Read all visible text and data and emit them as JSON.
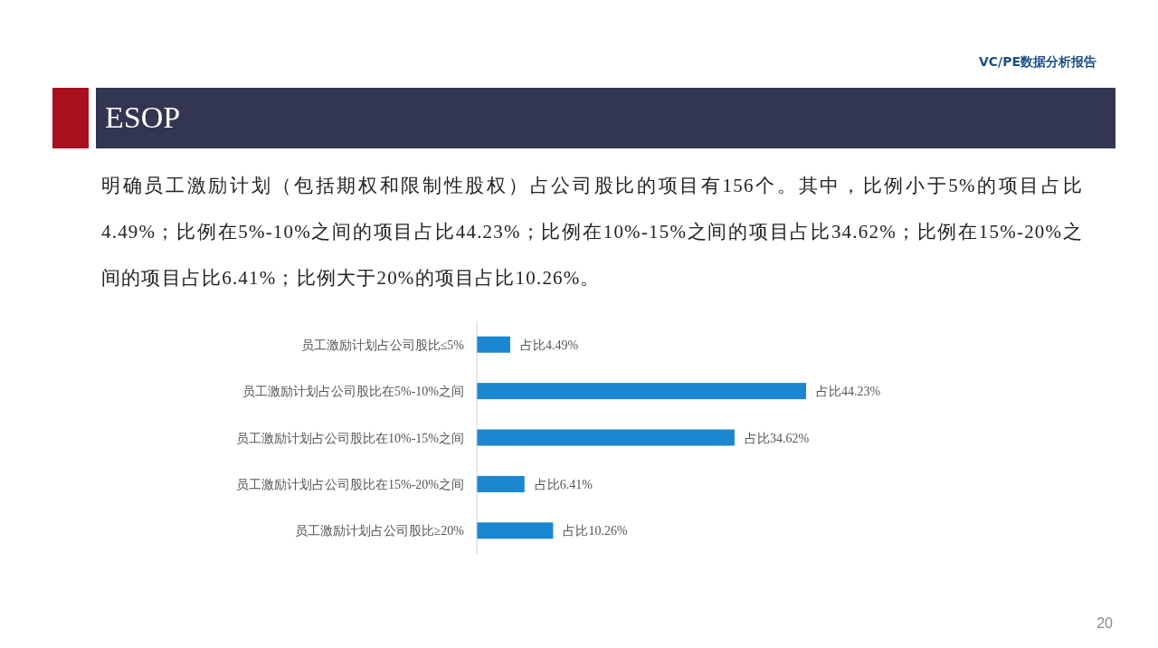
{
  "chart_data": {
    "type": "bar",
    "orientation": "horizontal",
    "title": "ESOP",
    "subtitle": "明确员工激励计划（包括期权和限制性股权）占公司股比的项目有156个。其中，比例小于5%的项目占比4.49%；比例在5%-10%之间的项目占比44.23%；比例在10%-15%之间的项目占比34.62%；比例在15%-20%之间的项目占比6.41%；比例大于20%的项目占比10.26%。",
    "annotations": [
      "VC/PE数据分析报告",
      "20"
    ],
    "categories": [
      "员工激励计划占公司股比≤5%",
      "员工激励计划占公司股比在5%-10%之间",
      "员工激励计划占公司股比在10%-15%之间",
      "员工激励计划占公司股比在15%-20%之间",
      "员工激励计划占公司股比≥20%"
    ],
    "values": [
      4.49,
      44.23,
      34.62,
      6.41,
      10.26
    ],
    "value_labels": [
      "占比4.49%",
      "占比44.23%",
      "占比34.62%",
      "占比6.41%",
      "占比10.26%"
    ],
    "color": "#1a87d0"
  }
}
